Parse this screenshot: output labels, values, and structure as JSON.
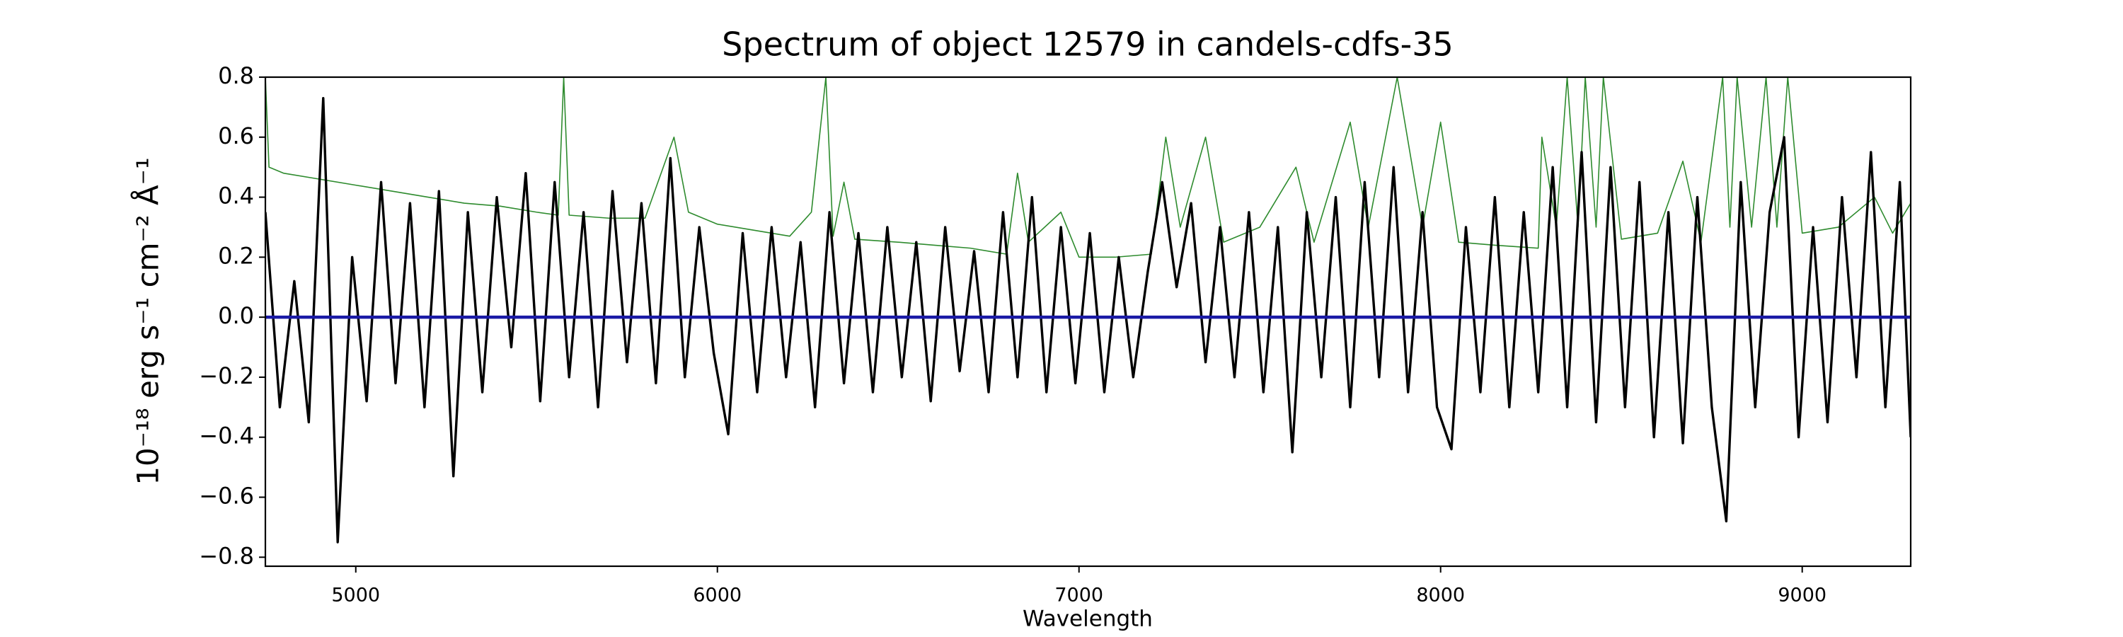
{
  "chart_data": {
    "type": "line",
    "title": "Spectrum of object 12579 in candels-cdfs-35",
    "x_label": "Wavelength",
    "y_label": "10⁻¹⁸ erg s⁻¹ cm⁻² Å⁻¹",
    "xlim": [
      4750,
      9300
    ],
    "ylim": [
      -0.83,
      0.8
    ],
    "xticks": [
      5000,
      6000,
      7000,
      8000,
      9000
    ],
    "yticks": [
      {
        "value": -0.8,
        "label": "−0.8"
      },
      {
        "value": -0.6,
        "label": "−0.6"
      },
      {
        "value": -0.4,
        "label": "−0.4"
      },
      {
        "value": -0.2,
        "label": "−0.2"
      },
      {
        "value": 0,
        "label": "0.0"
      },
      0.2,
      0.4,
      0.6,
      0.8
    ],
    "grid": false,
    "series": [
      {
        "color": "#2e8b2e",
        "width": 1.6,
        "x": [
          4750,
          4760,
          4800,
          4900,
          5000,
          5100,
          5200,
          5300,
          5400,
          5500,
          5560,
          5575,
          5590,
          5700,
          5800,
          5880,
          5920,
          6000,
          6100,
          6200,
          6260,
          6300,
          6320,
          6350,
          6380,
          6500,
          6600,
          6700,
          6800,
          6830,
          6860,
          6950,
          7000,
          7100,
          7200,
          7240,
          7280,
          7350,
          7400,
          7500,
          7600,
          7650,
          7750,
          7800,
          7880,
          7950,
          8000,
          8050,
          8150,
          8270,
          8280,
          8320,
          8350,
          8380,
          8400,
          8430,
          8450,
          8500,
          8600,
          8670,
          8720,
          8780,
          8800,
          8820,
          8860,
          8900,
          8930,
          8960,
          9000,
          9100,
          9200,
          9250,
          9300
        ],
        "values": [
          0.8,
          0.5,
          0.48,
          0.46,
          0.44,
          0.42,
          0.4,
          0.38,
          0.37,
          0.35,
          0.34,
          0.8,
          0.34,
          0.33,
          0.33,
          0.6,
          0.35,
          0.31,
          0.29,
          0.27,
          0.35,
          0.8,
          0.27,
          0.45,
          0.26,
          0.25,
          0.24,
          0.23,
          0.21,
          0.48,
          0.25,
          0.35,
          0.2,
          0.2,
          0.21,
          0.6,
          0.3,
          0.6,
          0.25,
          0.3,
          0.5,
          0.25,
          0.65,
          0.3,
          0.8,
          0.3,
          0.65,
          0.25,
          0.24,
          0.23,
          0.6,
          0.3,
          0.8,
          0.3,
          0.8,
          0.3,
          0.8,
          0.26,
          0.28,
          0.52,
          0.25,
          0.8,
          0.3,
          0.8,
          0.3,
          0.8,
          0.3,
          0.8,
          0.28,
          0.3,
          0.4,
          0.28,
          0.38
        ]
      },
      {
        "color": "#000000",
        "width": 3.4,
        "x": [
          4750,
          4790,
          4830,
          4870,
          4910,
          4950,
          4990,
          5030,
          5070,
          5110,
          5150,
          5190,
          5230,
          5270,
          5310,
          5350,
          5390,
          5430,
          5470,
          5510,
          5550,
          5590,
          5630,
          5670,
          5710,
          5750,
          5790,
          5830,
          5870,
          5910,
          5950,
          5990,
          6030,
          6070,
          6110,
          6150,
          6190,
          6230,
          6270,
          6310,
          6350,
          6390,
          6430,
          6470,
          6510,
          6550,
          6590,
          6630,
          6670,
          6710,
          6750,
          6790,
          6830,
          6870,
          6910,
          6950,
          6990,
          7030,
          7070,
          7110,
          7150,
          7190,
          7230,
          7270,
          7310,
          7350,
          7390,
          7430,
          7470,
          7510,
          7550,
          7590,
          7630,
          7670,
          7710,
          7750,
          7790,
          7830,
          7870,
          7910,
          7950,
          7990,
          8030,
          8070,
          8110,
          8150,
          8190,
          8230,
          8270,
          8310,
          8350,
          8390,
          8430,
          8470,
          8510,
          8550,
          8590,
          8630,
          8670,
          8710,
          8750,
          8790,
          8830,
          8870,
          8910,
          8950,
          8990,
          9030,
          9070,
          9110,
          9150,
          9190,
          9230,
          9270,
          9300
        ],
        "values": [
          0.35,
          -0.3,
          0.12,
          -0.35,
          0.73,
          -0.75,
          0.2,
          -0.28,
          0.45,
          -0.22,
          0.38,
          -0.3,
          0.42,
          -0.53,
          0.35,
          -0.25,
          0.4,
          -0.1,
          0.48,
          -0.28,
          0.45,
          -0.2,
          0.35,
          -0.3,
          0.42,
          -0.15,
          0.38,
          -0.22,
          0.53,
          -0.2,
          0.3,
          -0.12,
          -0.39,
          0.28,
          -0.25,
          0.3,
          -0.2,
          0.25,
          -0.3,
          0.35,
          -0.22,
          0.28,
          -0.25,
          0.3,
          -0.2,
          0.25,
          -0.28,
          0.3,
          -0.18,
          0.22,
          -0.25,
          0.35,
          -0.2,
          0.4,
          -0.25,
          0.3,
          -0.22,
          0.28,
          -0.25,
          0.2,
          -0.2,
          0.15,
          0.45,
          0.1,
          0.38,
          -0.15,
          0.3,
          -0.2,
          0.35,
          -0.25,
          0.3,
          -0.45,
          0.35,
          -0.2,
          0.4,
          -0.3,
          0.45,
          -0.2,
          0.5,
          -0.25,
          0.35,
          -0.3,
          -0.44,
          0.3,
          -0.25,
          0.4,
          -0.3,
          0.35,
          -0.25,
          0.5,
          -0.3,
          0.55,
          -0.35,
          0.5,
          -0.3,
          0.45,
          -0.4,
          0.35,
          -0.42,
          0.4,
          -0.3,
          -0.68,
          0.45,
          -0.3,
          0.35,
          0.6,
          -0.4,
          0.3,
          -0.35,
          0.4,
          -0.2,
          0.55,
          -0.3,
          0.45,
          -0.4
        ]
      },
      {
        "color": "#1a1aa6",
        "width": 4.5,
        "x": [
          4750,
          9300
        ],
        "values": [
          0,
          0
        ]
      }
    ]
  }
}
